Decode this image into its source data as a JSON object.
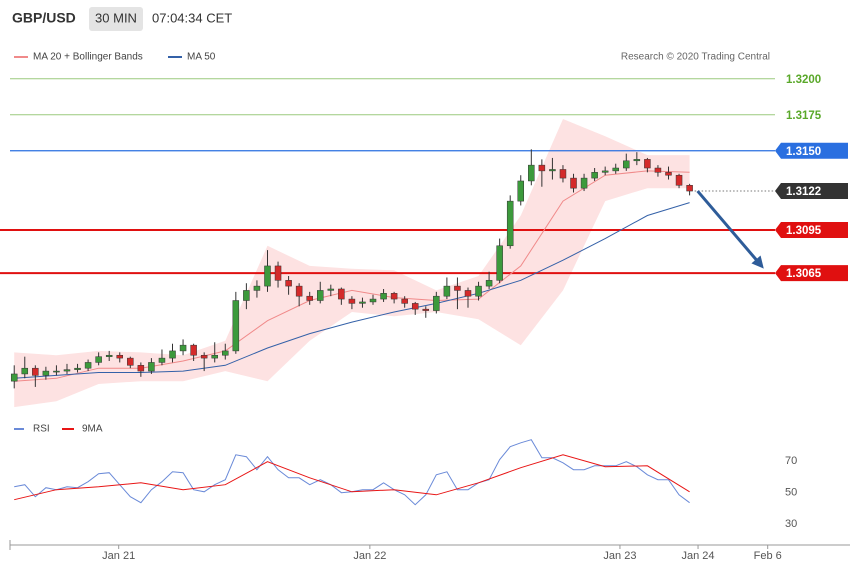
{
  "chart_data": [
    {
      "type": "candlestick",
      "title": "GBP/USD",
      "interval": "30 MIN",
      "timestamp": "07:04:34 CET",
      "credit": "Research © 2020 Trading Central",
      "up_color": "#3c9a3c",
      "down_color": "#d42a2a",
      "x": [
        0,
        1,
        2,
        3,
        4,
        5,
        6,
        7,
        8,
        9,
        10,
        11,
        12,
        13,
        14,
        15,
        16,
        17,
        18,
        19,
        20,
        21,
        22,
        23,
        24,
        25,
        26,
        27,
        28,
        29,
        30,
        31,
        32,
        33,
        34,
        35,
        36,
        37,
        38,
        39,
        40,
        41,
        42,
        43,
        44,
        45,
        46,
        47,
        48,
        49,
        50,
        51,
        52,
        53,
        54,
        55,
        56,
        57,
        58,
        59,
        60,
        61,
        62,
        63,
        64
      ],
      "ohlc": [
        [
          1.299,
          1.3001,
          1.2985,
          1.2995
        ],
        [
          1.2995,
          1.3007,
          1.2992,
          1.2999
        ],
        [
          1.2999,
          1.3001,
          1.2986,
          1.2994
        ],
        [
          1.2994,
          1.3,
          1.2991,
          1.2997
        ],
        [
          1.2997,
          1.3001,
          1.2994,
          1.2997
        ],
        [
          1.2997,
          1.3002,
          1.2995,
          1.2998
        ],
        [
          1.2998,
          1.3002,
          1.2996,
          1.2999
        ],
        [
          1.2999,
          1.3005,
          1.2997,
          1.3003
        ],
        [
          1.3003,
          1.301,
          1.3001,
          1.3007
        ],
        [
          1.3007,
          1.3011,
          1.3004,
          1.3008
        ],
        [
          1.3008,
          1.301,
          1.3003,
          1.3006
        ],
        [
          1.3006,
          1.3007,
          1.2999,
          1.3001
        ],
        [
          1.3001,
          1.3003,
          1.2993,
          1.2997
        ],
        [
          1.2997,
          1.3006,
          1.2995,
          1.3003
        ],
        [
          1.3003,
          1.3012,
          1.3001,
          1.3006
        ],
        [
          1.3006,
          1.3016,
          1.3003,
          1.3011
        ],
        [
          1.3011,
          1.3019,
          1.3008,
          1.3015
        ],
        [
          1.3015,
          1.3016,
          1.3004,
          1.3008
        ],
        [
          1.3008,
          1.301,
          1.2997,
          1.3006
        ],
        [
          1.3006,
          1.3017,
          1.3003,
          1.3008
        ],
        [
          1.3008,
          1.3016,
          1.3005,
          1.3011
        ],
        [
          1.3011,
          1.3052,
          1.3009,
          1.3046
        ],
        [
          1.3046,
          1.3058,
          1.304,
          1.3053
        ],
        [
          1.3053,
          1.306,
          1.3048,
          1.3056
        ],
        [
          1.3056,
          1.3081,
          1.3052,
          1.307
        ],
        [
          1.307,
          1.3073,
          1.3055,
          1.306
        ],
        [
          1.306,
          1.3063,
          1.305,
          1.3056
        ],
        [
          1.3056,
          1.3058,
          1.3042,
          1.3049
        ],
        [
          1.3049,
          1.3052,
          1.3043,
          1.3046
        ],
        [
          1.3046,
          1.3059,
          1.3044,
          1.3053
        ],
        [
          1.3053,
          1.3057,
          1.3049,
          1.3054
        ],
        [
          1.3054,
          1.3055,
          1.3043,
          1.3047
        ],
        [
          1.3047,
          1.3049,
          1.304,
          1.3044
        ],
        [
          1.3044,
          1.3048,
          1.3041,
          1.3045
        ],
        [
          1.3045,
          1.305,
          1.3043,
          1.3047
        ],
        [
          1.3047,
          1.3054,
          1.3045,
          1.3051
        ],
        [
          1.3051,
          1.3052,
          1.3044,
          1.3047
        ],
        [
          1.3047,
          1.3049,
          1.3041,
          1.3044
        ],
        [
          1.3044,
          1.3045,
          1.3036,
          1.304
        ],
        [
          1.304,
          1.3042,
          1.3034,
          1.3039
        ],
        [
          1.3039,
          1.3052,
          1.3037,
          1.3049
        ],
        [
          1.3049,
          1.3062,
          1.3047,
          1.3056
        ],
        [
          1.3056,
          1.3062,
          1.304,
          1.3053
        ],
        [
          1.3053,
          1.3055,
          1.3041,
          1.3049
        ],
        [
          1.3049,
          1.3059,
          1.3046,
          1.3056
        ],
        [
          1.3056,
          1.3066,
          1.3054,
          1.306
        ],
        [
          1.306,
          1.3089,
          1.3058,
          1.3084
        ],
        [
          1.3084,
          1.3119,
          1.3082,
          1.3115
        ],
        [
          1.3115,
          1.3133,
          1.3112,
          1.3129
        ],
        [
          1.3129,
          1.3151,
          1.3126,
          1.314
        ],
        [
          1.314,
          1.3144,
          1.3125,
          1.3136
        ],
        [
          1.3136,
          1.3145,
          1.313,
          1.3137
        ],
        [
          1.3137,
          1.314,
          1.3128,
          1.3131
        ],
        [
          1.3131,
          1.3134,
          1.3121,
          1.3124
        ],
        [
          1.3124,
          1.3134,
          1.3122,
          1.3131
        ],
        [
          1.3131,
          1.3138,
          1.3129,
          1.3135
        ],
        [
          1.3135,
          1.3139,
          1.3133,
          1.3136
        ],
        [
          1.3136,
          1.3141,
          1.3134,
          1.3138
        ],
        [
          1.3138,
          1.3148,
          1.3136,
          1.3143
        ],
        [
          1.3143,
          1.3149,
          1.314,
          1.3144
        ],
        [
          1.3144,
          1.3145,
          1.3135,
          1.3138
        ],
        [
          1.3138,
          1.314,
          1.3132,
          1.3135
        ],
        [
          1.3135,
          1.3139,
          1.313,
          1.3133
        ],
        [
          1.3133,
          1.3134,
          1.3124,
          1.3126
        ],
        [
          1.3126,
          1.3127,
          1.3119,
          1.3122
        ]
      ],
      "series": [
        {
          "name": "MA 20 + Bollinger Bands",
          "color": "#f08a8a",
          "band_color": "#fde2e2",
          "x": [
            0,
            4,
            8,
            12,
            16,
            20,
            24,
            28,
            32,
            36,
            40,
            44,
            48,
            52,
            56,
            60,
            64
          ],
          "values": [
            1.299,
            1.2992,
            1.2999,
            1.2999,
            1.3004,
            1.3011,
            1.3032,
            1.3046,
            1.3053,
            1.3048,
            1.3046,
            1.3047,
            1.307,
            1.3115,
            1.3133,
            1.3136,
            1.3135
          ],
          "upper": [
            1.301,
            1.3008,
            1.3011,
            1.301,
            1.3008,
            1.3018,
            1.3084,
            1.307,
            1.3068,
            1.3067,
            1.3053,
            1.3063,
            1.3105,
            1.3172,
            1.316,
            1.3147,
            1.3147
          ],
          "lower": [
            1.2972,
            1.2976,
            1.2988,
            1.299,
            1.299,
            1.2997,
            1.299,
            1.3018,
            1.3038,
            1.3035,
            1.3038,
            1.3033,
            1.3015,
            1.3053,
            1.3115,
            1.3124,
            1.3124
          ]
        },
        {
          "name": "MA 50",
          "color": "#3461a8",
          "x": [
            0,
            4,
            8,
            12,
            16,
            20,
            24,
            28,
            32,
            36,
            40,
            44,
            48,
            52,
            56,
            60,
            64
          ],
          "values": [
            1.2992,
            1.2994,
            1.2996,
            1.2996,
            1.2997,
            1.3001,
            1.3013,
            1.3023,
            1.3031,
            1.3038,
            1.3044,
            1.3051,
            1.306,
            1.3074,
            1.3089,
            1.3105,
            1.3114
          ]
        }
      ],
      "levels": [
        {
          "value": 1.32,
          "label": "1.3200",
          "color": "#5aa82a",
          "width": 1,
          "box": false
        },
        {
          "value": 1.3175,
          "label": "1.3175",
          "color": "#5aa82a",
          "width": 1,
          "box": false
        },
        {
          "value": 1.315,
          "label": "1.3150",
          "color": "#2a6fe0",
          "width": 1.2,
          "box": true
        },
        {
          "value": 1.3122,
          "label": "1.3122",
          "color": "#333333",
          "width": 1,
          "box": true,
          "dotted": true
        },
        {
          "value": 1.3095,
          "label": "1.3095",
          "color": "#e01010",
          "width": 2,
          "box": true
        },
        {
          "value": 1.3065,
          "label": "1.3065",
          "color": "#e01010",
          "width": 2,
          "box": true
        }
      ],
      "xlim": [
        -0.4,
        79.2
      ],
      "ylim": [
        1.29665,
        1.3213
      ]
    },
    {
      "type": "line",
      "series": [
        {
          "name": "RSI",
          "color": "#6a8ad8",
          "x": [
            0,
            1,
            2,
            3,
            4,
            5,
            6,
            7,
            8,
            9,
            10,
            11,
            12,
            13,
            14,
            15,
            16,
            17,
            18,
            19,
            20,
            21,
            22,
            23,
            24,
            25,
            26,
            27,
            28,
            29,
            30,
            31,
            32,
            33,
            34,
            35,
            36,
            37,
            38,
            39,
            40,
            41,
            42,
            43,
            44,
            45,
            46,
            47,
            48,
            49,
            50,
            51,
            52,
            53,
            54,
            55,
            56,
            57,
            58,
            59,
            60,
            61,
            62,
            63,
            64
          ],
          "values": [
            53.8,
            55.1,
            47.5,
            53.2,
            51.9,
            53.8,
            53.2,
            57.0,
            62.1,
            62.7,
            55.1,
            47.5,
            43.7,
            51.9,
            57.0,
            63.3,
            62.7,
            51.9,
            50.6,
            55.1,
            58.3,
            74.1,
            72.9,
            64.6,
            72.9,
            64.6,
            59.5,
            59.5,
            55.1,
            58.3,
            55.1,
            50.0,
            50.6,
            51.9,
            51.9,
            56.3,
            51.9,
            48.7,
            42.4,
            48.7,
            61.4,
            63.3,
            51.9,
            51.9,
            56.3,
            58.3,
            71.0,
            79.2,
            81.7,
            83.7,
            72.2,
            72.2,
            69.0,
            64.6,
            64.6,
            67.1,
            67.1,
            67.1,
            69.7,
            66.5,
            61.4,
            58.3,
            58.3,
            48.7,
            43.7
          ]
        },
        {
          "name": "9MA",
          "color": "#e81515",
          "x": [
            0,
            4,
            8,
            12,
            16,
            20,
            24,
            28,
            32,
            36,
            40,
            44,
            48,
            52,
            56,
            60,
            64
          ],
          "values": [
            45.6,
            51.9,
            53.8,
            56.3,
            51.9,
            55.1,
            69.7,
            59.5,
            50.6,
            51.9,
            48.7,
            56.3,
            65.9,
            74.1,
            66.5,
            67.1,
            50.6
          ]
        }
      ],
      "xlim": [
        -0.4,
        79.2
      ],
      "xticks": [
        {
          "value": 9.9,
          "label": "Jan 21"
        },
        {
          "value": 33.7,
          "label": "Jan 22"
        },
        {
          "value": 57.4,
          "label": "Jan 23"
        },
        {
          "value": 64.8,
          "label": "Jan 24"
        },
        {
          "value": 71.4,
          "label": "Feb 6"
        }
      ],
      "ylim": [
        20,
        93
      ],
      "yticks": [
        30,
        50,
        70
      ]
    }
  ]
}
